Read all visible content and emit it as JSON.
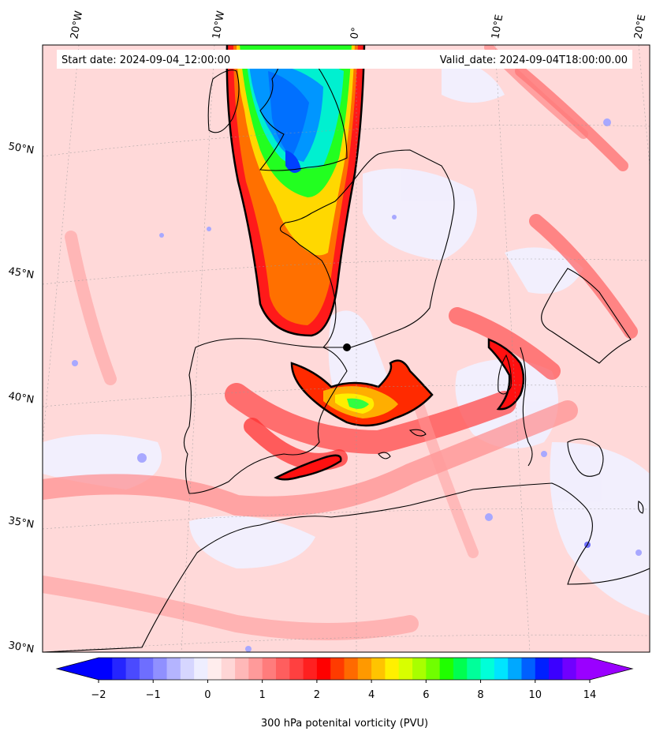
{
  "header": {
    "start_date": "Start date: 2024-09-04_12:00:00",
    "valid_date": "Valid_date: 2024-09-04T18:00:00.00"
  },
  "map": {
    "lon_labels": [
      "20°W",
      "10°W",
      "0°",
      "10°E",
      "20°E"
    ],
    "lat_labels": [
      "50°N",
      "45°N",
      "40°N",
      "35°N",
      "30°N"
    ]
  },
  "colorbar": {
    "ticks": [
      "−2",
      "−1",
      "0",
      "1",
      "2",
      "4",
      "6",
      "8",
      "10",
      "14"
    ],
    "label": "300 hPa potenital vorticity (PVU)",
    "colors": [
      "#0000ff",
      "#2525ff",
      "#4a4aff",
      "#6e6eff",
      "#9090ff",
      "#b4b4ff",
      "#d6d6ff",
      "#eeeeff",
      "#ffeded",
      "#ffd6d6",
      "#ffb8b8",
      "#ff9a9a",
      "#ff7c7c",
      "#ff5e5e",
      "#ff4040",
      "#ff2020",
      "#ff0000",
      "#ff3b00",
      "#ff6a00",
      "#ff9900",
      "#ffc400",
      "#fff000",
      "#d8ff00",
      "#a8ff00",
      "#70ff00",
      "#20ff00",
      "#00ff50",
      "#00ff9a",
      "#00ffd8",
      "#00e4ff",
      "#00a8ff",
      "#0060ff",
      "#0020ff",
      "#3b00ff",
      "#7000ff",
      "#9a00ff"
    ]
  }
}
